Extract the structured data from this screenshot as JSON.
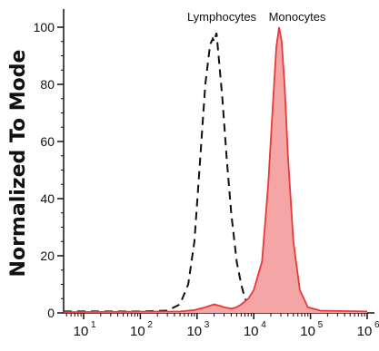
{
  "chart_data": {
    "type": "area",
    "ylabel": "Normalized To Mode",
    "xscale": "log",
    "xlim": [
      1,
      1000000
    ],
    "ylim": [
      0,
      100
    ],
    "yticks": [
      0,
      20,
      40,
      60,
      80,
      100
    ],
    "xticks": [
      {
        "base": "10",
        "exp": "1"
      },
      {
        "base": "10",
        "exp": "2"
      },
      {
        "base": "10",
        "exp": "3"
      },
      {
        "base": "10",
        "exp": "4"
      },
      {
        "base": "10",
        "exp": "5"
      },
      {
        "base": "10",
        "exp": "6"
      }
    ],
    "series": [
      {
        "name": "Lymphocytes",
        "style": "dashed-outline",
        "color": "#111111",
        "points": [
          [
            1,
            0.5
          ],
          [
            100,
            0.5
          ],
          [
            300,
            0.8
          ],
          [
            500,
            3
          ],
          [
            700,
            10
          ],
          [
            900,
            25
          ],
          [
            1100,
            50
          ],
          [
            1400,
            80
          ],
          [
            1700,
            94
          ],
          [
            1900,
            96
          ],
          [
            2000,
            95
          ],
          [
            2200,
            98
          ],
          [
            2400,
            90
          ],
          [
            2800,
            75
          ],
          [
            3300,
            55
          ],
          [
            4000,
            35
          ],
          [
            5000,
            18
          ],
          [
            6000,
            10
          ],
          [
            7000,
            5
          ],
          [
            9000,
            2
          ],
          [
            12000,
            0.8
          ],
          [
            30000,
            0.5
          ],
          [
            1000000,
            0.3
          ]
        ]
      },
      {
        "name": "Monocytes",
        "style": "filled",
        "color": "#e83a3a",
        "fill": "#f4a6a6",
        "points": [
          [
            1,
            0.3
          ],
          [
            500,
            0.5
          ],
          [
            900,
            1
          ],
          [
            1400,
            2
          ],
          [
            2000,
            3
          ],
          [
            2500,
            2.5
          ],
          [
            3000,
            2
          ],
          [
            4000,
            1.5
          ],
          [
            5000,
            2
          ],
          [
            6000,
            3
          ],
          [
            8000,
            5
          ],
          [
            10000,
            8
          ],
          [
            14000,
            18
          ],
          [
            18000,
            45
          ],
          [
            22000,
            75
          ],
          [
            25000,
            93
          ],
          [
            28000,
            100
          ],
          [
            31000,
            95
          ],
          [
            35000,
            80
          ],
          [
            40000,
            55
          ],
          [
            50000,
            25
          ],
          [
            65000,
            8
          ],
          [
            90000,
            2
          ],
          [
            150000,
            0.8
          ],
          [
            1000000,
            0.5
          ]
        ]
      }
    ]
  }
}
